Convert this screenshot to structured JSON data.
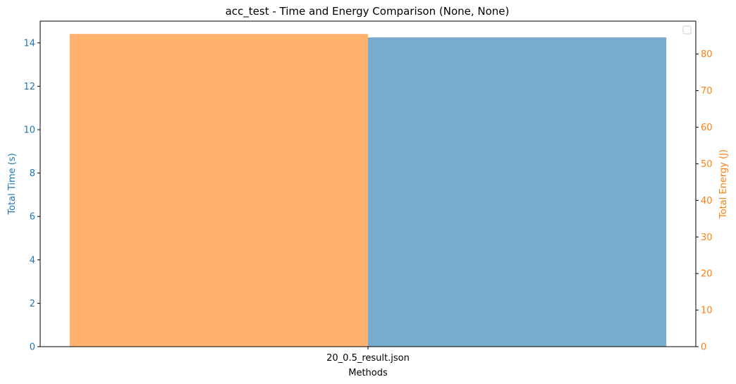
{
  "chart_data": {
    "type": "bar",
    "title": "acc_test - Time and Energy Comparison (None, None)",
    "xlabel": "Methods",
    "categories": [
      "20_0.5_result.json"
    ],
    "left_axis": {
      "label": "Total Time (s)",
      "color": "#1f77b4",
      "ylim": [
        0,
        15
      ],
      "ticks": [
        0,
        2,
        4,
        6,
        8,
        10,
        12,
        14
      ]
    },
    "right_axis": {
      "label": "Total Energy (J)",
      "color": "#ff7f0e",
      "ylim": [
        0,
        89
      ],
      "ticks": [
        0,
        10,
        20,
        30,
        40,
        50,
        60,
        70,
        80
      ]
    },
    "series": [
      {
        "axis": "left",
        "values": [
          14.25
        ],
        "color": "#77acd0",
        "side": "right"
      },
      {
        "axis": "right",
        "values": [
          85.5
        ],
        "color": "#ffb16e",
        "side": "left"
      }
    ],
    "legend": {
      "placement": "top-right",
      "entries": []
    },
    "grid": false
  }
}
